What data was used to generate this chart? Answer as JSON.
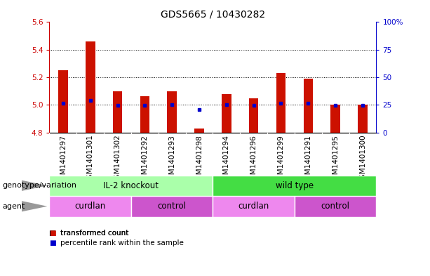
{
  "title": "GDS5665 / 10430282",
  "samples": [
    "GSM1401297",
    "GSM1401301",
    "GSM1401302",
    "GSM1401292",
    "GSM1401293",
    "GSM1401298",
    "GSM1401294",
    "GSM1401296",
    "GSM1401299",
    "GSM1401291",
    "GSM1401295",
    "GSM1401300"
  ],
  "bar_values": [
    5.25,
    5.46,
    5.1,
    5.065,
    5.1,
    4.83,
    5.08,
    5.05,
    5.23,
    5.19,
    5.0,
    5.0
  ],
  "bar_base": 4.8,
  "blue_dots": [
    5.01,
    5.03,
    4.995,
    4.995,
    5.0,
    4.965,
    5.0,
    4.995,
    5.01,
    5.01,
    4.995,
    4.995
  ],
  "ylim": [
    4.8,
    5.6
  ],
  "yticks_left": [
    4.8,
    5.0,
    5.2,
    5.4,
    5.6
  ],
  "yticks_right": [
    0,
    25,
    50,
    75,
    100
  ],
  "yticks_right_labels": [
    "0",
    "25",
    "50",
    "75",
    "100%"
  ],
  "bar_color": "#cc1100",
  "dot_color": "#0000cc",
  "xticklabel_bg": "#c8c8c8",
  "genotype_groups": [
    {
      "label": "IL-2 knockout",
      "start": 0,
      "end": 6,
      "color": "#aaffaa"
    },
    {
      "label": "wild type",
      "start": 6,
      "end": 12,
      "color": "#44dd44"
    }
  ],
  "agent_groups": [
    {
      "label": "curdlan",
      "start": 0,
      "end": 3,
      "color": "#ee88ee"
    },
    {
      "label": "control",
      "start": 3,
      "end": 6,
      "color": "#cc55cc"
    },
    {
      "label": "curdlan",
      "start": 6,
      "end": 9,
      "color": "#ee88ee"
    },
    {
      "label": "control",
      "start": 9,
      "end": 12,
      "color": "#cc55cc"
    }
  ],
  "legend_items": [
    {
      "label": "transformed count",
      "color": "#cc1100"
    },
    {
      "label": "percentile rank within the sample",
      "color": "#0000cc"
    }
  ],
  "dotted_lines": [
    5.0,
    5.2,
    5.4
  ],
  "left_axis_color": "#cc0000",
  "right_axis_color": "#0000cc",
  "title_fontsize": 10,
  "tick_fontsize": 7.5,
  "label_fontsize": 8.5,
  "row_label_fontsize": 8,
  "legend_fontsize": 7.5
}
